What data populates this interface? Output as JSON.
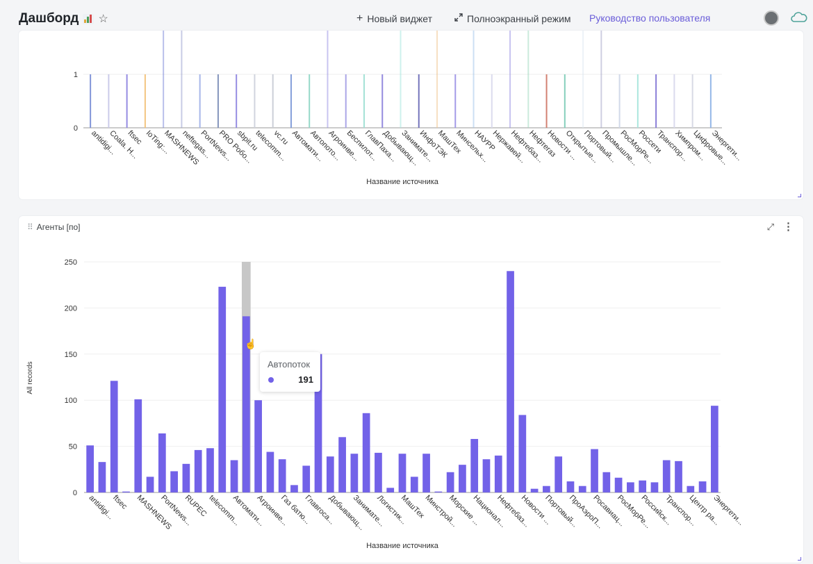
{
  "header": {
    "title": "Дашборд",
    "new_widget": "Новый виджет",
    "fullscreen": "Полноэкранный режим",
    "user_guide": "Руководство пользователя"
  },
  "colors": {
    "accent": "#6a5dd9",
    "bar": "#7262e8",
    "highlight_bg": "#c7c7c7"
  },
  "icons": [
    "bar-chart-emoji-icon",
    "star-icon",
    "plus-icon",
    "expand-arrows-icon",
    "avatar",
    "cloud-icon",
    "drag-handle-icon",
    "expand-icon",
    "kebab-icon"
  ],
  "panel_top": {
    "xlabel": "Название источника",
    "ytick_labels": [
      "0",
      "1"
    ],
    "chart_data": {
      "type": "bar",
      "xlabel": "Название источника",
      "ylabel": "",
      "ylim": [
        0,
        1.8
      ],
      "categories": [
        "antidigi...",
        "Coala. H...",
        "ftsec",
        "IoTing:...",
        "MASHNEWS",
        "neftegas...",
        "PortNews...",
        "PRO Робо...",
        "sbpit.ru",
        "telecomm...",
        "vc.ru",
        "Автомати...",
        "Автопото...",
        "Агроинве...",
        "Беспилот...",
        "ГлавПаха...",
        "Добывающ...",
        "Занимате...",
        "ИнфоТЭК",
        "МашТех",
        "Минсельх...",
        "НАУРР",
        "Нержавей...",
        "Нефтебаз...",
        "Нефтегаз",
        "Новости ...",
        "Открытые...",
        "Портовый...",
        "Промышле...",
        "РосМорРе...",
        "Россети",
        "Транспор...",
        "Химпром...",
        "Цифровые...",
        "Энергети..."
      ],
      "values": [
        1,
        1,
        1,
        1,
        1,
        1,
        1,
        1,
        1,
        1,
        1,
        1,
        1,
        1,
        1,
        1,
        1,
        1,
        1,
        1,
        1,
        1,
        1,
        1,
        1,
        1,
        1,
        1,
        1,
        1,
        1,
        1,
        1,
        1,
        1
      ]
    }
  },
  "panel_bottom": {
    "title": "Агенты [по]",
    "ylabel": "All records",
    "xlabel": "Название источника",
    "tooltip": {
      "label": "Автопоток",
      "value": "191"
    },
    "chart_data": {
      "type": "bar",
      "title": "Агенты [по]",
      "xlabel": "Название источника",
      "ylabel": "All records",
      "ylim": [
        0,
        250
      ],
      "yticks": [
        0,
        50,
        100,
        150,
        200,
        250
      ],
      "tick_labels": [
        "antidigi...",
        "ftsec",
        "MASHNEWS",
        "PortNews...",
        "RUPEC",
        "telecomm...",
        "Автомати...",
        "Агроинве...",
        "Газ батю...",
        "Главгоса...",
        "Добывающ...",
        "Занимате...",
        "Логистик...",
        "МашТех",
        "Минстрой...",
        "Морские ...",
        "Национал...",
        "Нефтебаз...",
        "Новости ...",
        "Портовый...",
        "ПроАэроП...",
        "Росавиац...",
        "РосМорРе...",
        "Российск...",
        "Транспор...",
        "Центр ра...",
        "Энергети..."
      ],
      "values": [
        51,
        33,
        121,
        1,
        101,
        17,
        64,
        23,
        31,
        46,
        48,
        223,
        35,
        191,
        100,
        44,
        36,
        8,
        29,
        150,
        39,
        60,
        42,
        86,
        43,
        5,
        42,
        17,
        42,
        1,
        22,
        30,
        58,
        36,
        40,
        240,
        84,
        4,
        7,
        39,
        12,
        7,
        47,
        22,
        16,
        11,
        13,
        11,
        35,
        34,
        7,
        12,
        94
      ],
      "highlight_index": 13
    }
  }
}
